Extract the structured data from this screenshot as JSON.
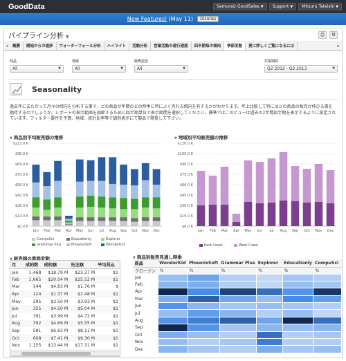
{
  "app": {
    "logo": "GoodData",
    "menus": [
      "Samuraiz GoodSales",
      "Support",
      "Mitsuru Tateishi"
    ]
  },
  "banner": {
    "link": "New Features!",
    "suffix": "(May 11)",
    "dismiss": "Dismiss"
  },
  "page": {
    "title": "パイプライン分析"
  },
  "tabs": [
    "概要",
    "開始からの進捗",
    "ウォーターフォール分析",
    "ハイライト",
    "活動分析",
    "営業活動の達行速度",
    "四半期毎の傾向",
    "季節変動",
    "更に詳しくご覧になるには"
  ],
  "active_tab_index": 7,
  "filters": [
    {
      "label": "商品",
      "value": "All"
    },
    {
      "label": "地域",
      "value": "All"
    },
    {
      "label": "販売担当",
      "value": "All"
    },
    {
      "label": "対象期間",
      "value": "Q2 2012 - Q2 2013"
    }
  ],
  "section": {
    "title": "Seasonality"
  },
  "description": "過去年にまたがって月々の傾向を分析する事で、どの商品が年間のどの時季に特によく売れる傾向を有するかがわかります。年上比較して特にはどの商品の販売が伸びる事を期待するのでしょうか。レポートの表示範囲を調節するために四半期単位で表示期間を選択してください。標準ではこのビューは過去の2年間四半期を表示するように設定されています。フィルター要件を予算、地域、統計比率等で調別表示にて製品で閲覧して下さい。",
  "months": [
    "Jan",
    "Feb",
    "Mar",
    "Apr",
    "May",
    "Jun",
    "Jul",
    "Aug",
    "Sep",
    "Oct",
    "Nov",
    "Dec"
  ],
  "chart_data": [
    {
      "type": "bar",
      "title": "商品別平均販売額の推移",
      "categories": [
        "Jan",
        "Feb",
        "Mar",
        "Apr",
        "May",
        "Jun",
        "Jul",
        "Aug",
        "Sep",
        "Oct",
        "Nov",
        "Dec"
      ],
      "ylim": [
        0,
        112
      ],
      "yticks": [
        "$0.0 K",
        "$14.0 K",
        "$28.0 K",
        "$42.0 K",
        "$56.0 K",
        "$70.0 K",
        "$84.0 K",
        "$98.0 K",
        "$112.0 K"
      ],
      "stacked": true,
      "series": [
        {
          "name": "CompuSci",
          "color": "#c9c9c9",
          "values": [
            8,
            8,
            8,
            2,
            7,
            7,
            7,
            7,
            7,
            6,
            7,
            7
          ]
        },
        {
          "name": "Educationly",
          "color": "#6f6f6f",
          "values": [
            5,
            5,
            5,
            1,
            5,
            5,
            5,
            5,
            5,
            5,
            5,
            5
          ]
        },
        {
          "name": "Explorer",
          "color": "#95dd7e",
          "values": [
            12,
            9,
            12,
            2,
            13,
            14,
            13,
            12,
            11,
            12,
            13,
            12
          ]
        },
        {
          "name": "Grammar Plus",
          "color": "#3d9b30",
          "values": [
            14,
            14,
            14,
            2,
            15,
            15,
            15,
            15,
            15,
            14,
            14,
            15
          ]
        },
        {
          "name": "PhoenixSoft",
          "color": "#a4c0e2",
          "values": [
            20,
            18,
            22,
            3,
            20,
            20,
            21,
            18,
            18,
            18,
            23,
            17
          ]
        },
        {
          "name": "WonderKid",
          "color": "#2c5e9f",
          "values": [
            24,
            19,
            27,
            4,
            30,
            28,
            32,
            36,
            27,
            22,
            23,
            21
          ]
        }
      ]
    },
    {
      "type": "bar",
      "title": "地域別平均販売額の推移",
      "categories": [
        "Jan",
        "Feb",
        "Mar",
        "Apr",
        "May",
        "Jun",
        "Jul",
        "Aug",
        "Sep",
        "Oct",
        "Nov",
        "Dec"
      ],
      "ylim": [
        0,
        120
      ],
      "yticks": [
        "$0.0 K",
        "$15.0 K",
        "$30.0 K",
        "$45.0 K",
        "$60.0 K",
        "$75.0 K",
        "$90.0 K",
        "$105.0 K",
        "$120.0 K"
      ],
      "stacked": true,
      "series": [
        {
          "name": "East Coast",
          "color": "#7b3f8e",
          "values": [
            30,
            31,
            31,
            6,
            35,
            33,
            34,
            37,
            36,
            34,
            35,
            33
          ]
        },
        {
          "name": "West Coast",
          "color": "#c599cf",
          "values": [
            50,
            42,
            55,
            12,
            60,
            60,
            64,
            70,
            51,
            49,
            55,
            48
          ]
        }
      ]
    }
  ],
  "sales_table": {
    "title": "販売額の季節変動",
    "columns": [
      "月",
      "成約数",
      "成約額",
      "先注額",
      "平均見込"
    ],
    "rows": [
      [
        "Jan",
        "1,468",
        "$18.79 M",
        "$23.37 M",
        "$1"
      ],
      [
        "Feb",
        "1,665",
        "$20.04 M",
        "$25.52 M",
        "$1"
      ],
      [
        "Mar",
        "144",
        "$4.83 M",
        "$1.76 M",
        "$"
      ],
      [
        "Apr",
        "124",
        "$1.37 M",
        "$1.48 M",
        "$1"
      ],
      [
        "May",
        "295",
        "$3.50 M",
        "$3.93 M",
        "$1"
      ],
      [
        "Jun",
        "355",
        "$4.50 M",
        "$5.04 M",
        "$1"
      ],
      [
        "Jul",
        "391",
        "$3.99 M",
        "$4.72 M",
        "$1"
      ],
      [
        "Aug",
        "392",
        "$4.69 M",
        "$5.55 M",
        "$1"
      ],
      [
        "Sep",
        "581",
        "$6.63 M",
        "$8.11 M",
        "$1"
      ],
      [
        "Oct",
        "608",
        "$7.41 M",
        "$9.30 M",
        "$1"
      ],
      [
        "Nov",
        "1,155",
        "$13.44 M",
        "$17.31 M",
        "$1"
      ],
      [
        "Dec",
        "1,256",
        "$14.10 M",
        "$17.75 M",
        "$1"
      ]
    ]
  },
  "heatmap": {
    "title": "商品別販売見通し時季",
    "corner_label": "商品",
    "sub_label": "クロージン",
    "pct_label": "%",
    "columns": [
      "WonderKid",
      "PhoenixSoft",
      "Grammar Plus",
      "Explorer",
      "Educationly",
      "CompuSci"
    ],
    "rows": [
      "Jan",
      "Feb",
      "Apr",
      "Mar",
      "Jun",
      "Jul",
      "Aug",
      "Sep",
      "Oct",
      "Nov",
      "Dec"
    ],
    "values": [
      [
        0.3,
        0.45,
        0.2,
        0.15,
        0.25,
        0.2
      ],
      [
        0.35,
        0.4,
        0.2,
        0.15,
        0.3,
        0.25
      ],
      [
        0.95,
        0.6,
        0.85,
        0.7,
        0.55,
        0.9
      ],
      [
        0.4,
        0.75,
        0.45,
        0.3,
        0.6,
        0.5
      ],
      [
        0.55,
        0.35,
        0.25,
        0.3,
        0.25,
        0.2
      ],
      [
        0.3,
        0.5,
        0.35,
        0.2,
        0.3,
        0.15
      ],
      [
        0.55,
        0.65,
        0.75,
        0.45,
        0.95,
        0.7
      ],
      [
        0.95,
        0.55,
        0.25,
        0.35,
        0.3,
        0.35
      ],
      [
        0.4,
        0.3,
        0.2,
        0.7,
        0.2,
        0.25
      ],
      [
        0.3,
        0.2,
        0.25,
        0.65,
        0.2,
        0.2
      ],
      [
        0.35,
        0.25,
        0.2,
        0.4,
        0.25,
        0.3
      ]
    ]
  }
}
